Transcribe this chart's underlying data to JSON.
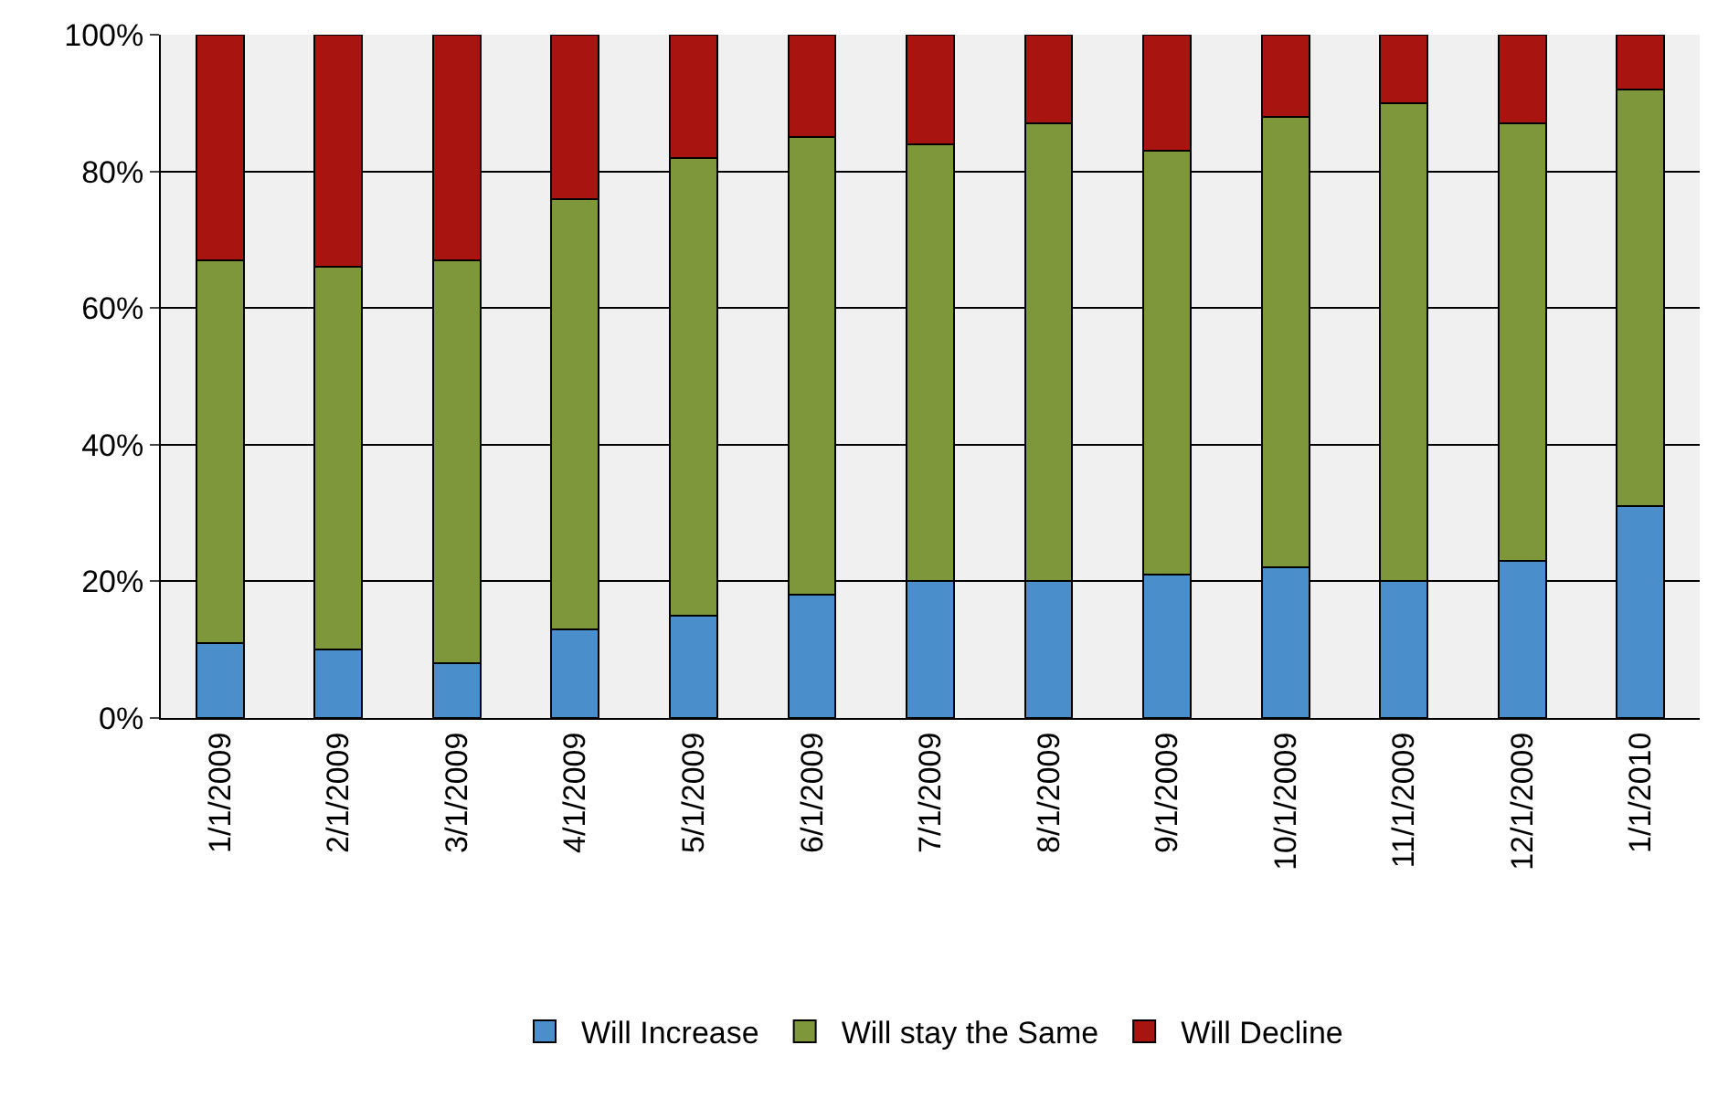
{
  "chart_data": {
    "type": "bar",
    "stacked": true,
    "categories": [
      "1/1/2009",
      "2/1/2009",
      "3/1/2009",
      "4/1/2009",
      "5/1/2009",
      "6/1/2009",
      "7/1/2009",
      "8/1/2009",
      "9/1/2009",
      "10/1/2009",
      "11/1/2009",
      "12/1/2009",
      "1/1/2010"
    ],
    "series": [
      {
        "name": "Will Increase",
        "color": "#4a8fcc",
        "values": [
          11,
          10,
          8,
          13,
          15,
          18,
          20,
          20,
          21,
          22,
          20,
          23,
          31
        ]
      },
      {
        "name": "Will stay the Same",
        "color": "#7e973a",
        "values": [
          56,
          56,
          59,
          63,
          67,
          67,
          64,
          67,
          62,
          66,
          70,
          64,
          61
        ]
      },
      {
        "name": "Will Decline",
        "color": "#a8140f",
        "values": [
          33,
          34,
          33,
          24,
          18,
          15,
          16,
          13,
          17,
          12,
          10,
          13,
          8
        ]
      }
    ],
    "ylim": [
      0,
      100
    ],
    "yticks": [
      {
        "value": 0,
        "label": "0%"
      },
      {
        "value": 20,
        "label": "20%"
      },
      {
        "value": 40,
        "label": "40%"
      },
      {
        "value": 60,
        "label": "60%"
      },
      {
        "value": 80,
        "label": "80%"
      },
      {
        "value": 100,
        "label": "100%"
      }
    ],
    "grid": "y",
    "legend": "bottom"
  }
}
